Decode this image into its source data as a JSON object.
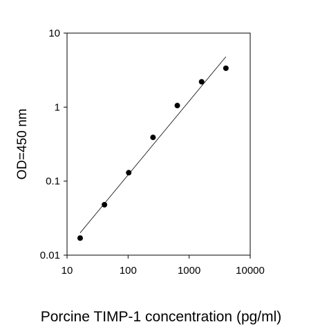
{
  "chart_data": {
    "type": "scatter",
    "title": "",
    "xlabel": "Porcine TIMP-1 concentration (pg/ml)",
    "ylabel": "OD=450 nm",
    "xscale": "log",
    "yscale": "log",
    "xlim": [
      10,
      10000
    ],
    "ylim": [
      0.01,
      10
    ],
    "xticks": [
      10,
      100,
      1000,
      10000
    ],
    "xtick_labels": [
      "10",
      "100",
      "1000",
      "10000"
    ],
    "yticks": [
      0.01,
      0.1,
      1,
      10
    ],
    "ytick_labels": [
      "0.01",
      "0.1",
      "1",
      "10"
    ],
    "grid": false,
    "legend": "none",
    "marker_color": "#000000",
    "series": [
      {
        "x": [
          16.4,
          41,
          102.4,
          256,
          640,
          1600,
          4000
        ],
        "y": [
          0.017,
          0.048,
          0.13,
          0.39,
          1.05,
          2.2,
          3.35
        ]
      }
    ],
    "fit_line": {
      "type": "linear-log-log",
      "x": [
        16.4,
        4000
      ],
      "y": [
        0.02,
        4.8
      ]
    }
  }
}
